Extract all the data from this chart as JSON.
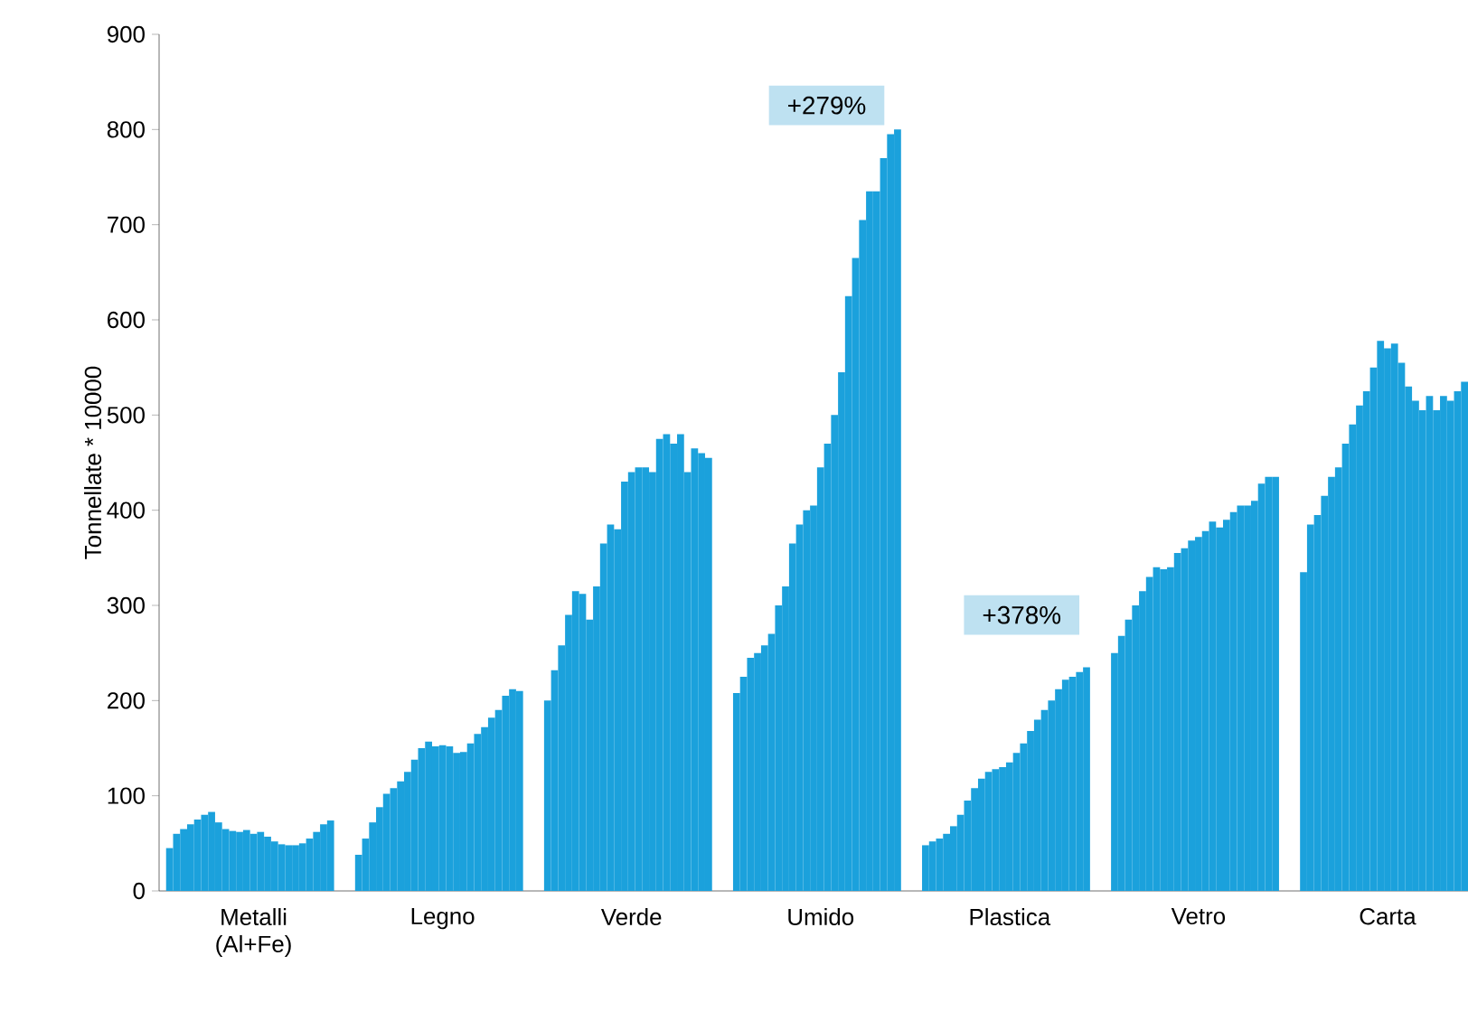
{
  "chart_data": {
    "type": "bar",
    "ylabel": "Tonnellate * 10000",
    "categories": [
      null,
      null,
      null,
      null,
      null,
      null,
      null,
      null,
      null,
      null,
      null,
      null,
      null,
      "Metalli (Al+Fe)",
      null,
      null,
      null,
      null,
      null,
      null,
      null,
      null,
      null,
      null,
      null,
      null,
      null,
      null,
      null,
      null,
      null,
      null,
      null,
      null,
      null,
      null,
      null,
      null,
      null,
      null,
      "Legno",
      null,
      null,
      null,
      null,
      null,
      null,
      null,
      null,
      null,
      null,
      null,
      null,
      null,
      null,
      null,
      null,
      null,
      null,
      null,
      null,
      null,
      null,
      null,
      null,
      null,
      null,
      "Verde",
      null,
      null,
      null,
      null,
      null,
      null,
      null,
      null,
      null,
      null,
      null,
      null,
      null,
      null,
      null,
      null,
      null,
      null,
      null,
      null,
      null,
      null,
      null,
      null,
      null,
      null,
      "Umido",
      null,
      null,
      null,
      null,
      null,
      null,
      null,
      null,
      null,
      null,
      null,
      null,
      null,
      null,
      null,
      null,
      null,
      null,
      null,
      null,
      null,
      null,
      null,
      null,
      null,
      null,
      "Plastica",
      null,
      null,
      null,
      null,
      null,
      null,
      null,
      null,
      null,
      null,
      null,
      null,
      null,
      null,
      null,
      null,
      null,
      null,
      null,
      null,
      null,
      null,
      null,
      null,
      null,
      null,
      "Vetro",
      null,
      null,
      null,
      null,
      null,
      null,
      null,
      null,
      null,
      null,
      null,
      null,
      null,
      null,
      null,
      null,
      null,
      null,
      null,
      null,
      null,
      null,
      null,
      null,
      null,
      null,
      "Carta",
      null,
      null,
      null,
      null,
      null,
      null,
      null,
      null,
      null,
      null,
      null
    ],
    "values": [
      null,
      45,
      60,
      65,
      70,
      75,
      80,
      83,
      72,
      65,
      63,
      62,
      64,
      60,
      62,
      57,
      52,
      49,
      48,
      48,
      50,
      55,
      62,
      70,
      74,
      null,
      null,
      null,
      38,
      55,
      72,
      88,
      102,
      108,
      115,
      125,
      138,
      150,
      157,
      152,
      153,
      152,
      145,
      146,
      155,
      165,
      172,
      182,
      190,
      205,
      212,
      210,
      null,
      null,
      null,
      200,
      232,
      258,
      290,
      315,
      312,
      285,
      320,
      365,
      385,
      380,
      430,
      440,
      445,
      445,
      440,
      475,
      480,
      470,
      480,
      440,
      465,
      460,
      455,
      null,
      null,
      null,
      208,
      225,
      245,
      250,
      258,
      270,
      300,
      320,
      365,
      385,
      400,
      405,
      445,
      470,
      500,
      545,
      625,
      665,
      705,
      735,
      735,
      770,
      795,
      800,
      null,
      null,
      null,
      48,
      52,
      55,
      60,
      68,
      80,
      95,
      108,
      118,
      125,
      128,
      130,
      135,
      145,
      155,
      168,
      180,
      190,
      200,
      212,
      222,
      225,
      230,
      235,
      null,
      null,
      null,
      250,
      268,
      285,
      300,
      315,
      330,
      340,
      338,
      340,
      355,
      360,
      368,
      372,
      378,
      388,
      382,
      390,
      398,
      405,
      405,
      410,
      428,
      435,
      435,
      null,
      null,
      null,
      335,
      385,
      395,
      415,
      435,
      445,
      470,
      490,
      510,
      525,
      550,
      578,
      570,
      575,
      555,
      530,
      515,
      505,
      520,
      505,
      520,
      515,
      525,
      535
    ],
    "color": "#1ba1dc",
    "ylim": [
      0,
      900
    ],
    "yticks": [
      0,
      100,
      200,
      300,
      400,
      500,
      600,
      700,
      800,
      900
    ],
    "annotations": [
      "+279%",
      "+378%"
    ],
    "grid": false
  }
}
